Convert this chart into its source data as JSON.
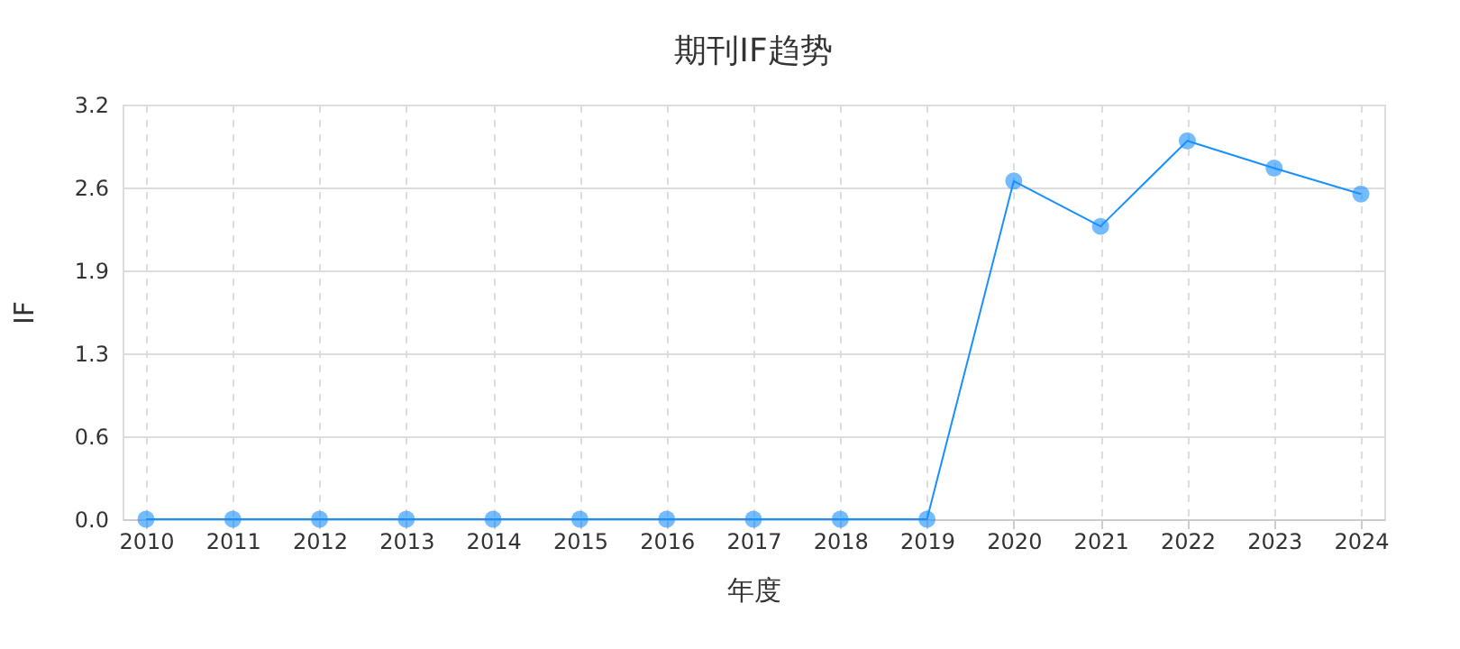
{
  "chart_data": {
    "type": "line",
    "title": "期刊IF趋势",
    "xlabel": "年度",
    "ylabel": "IF",
    "categories": [
      "2010",
      "2011",
      "2012",
      "2013",
      "2014",
      "2015",
      "2016",
      "2017",
      "2018",
      "2019",
      "2020",
      "2021",
      "2022",
      "2023",
      "2024"
    ],
    "series": [
      {
        "color": "#1890ff",
        "values": [
          0,
          0,
          0,
          0,
          0,
          0,
          0,
          0,
          0,
          0,
          2.61,
          2.26,
          2.92,
          2.71,
          2.51
        ]
      }
    ],
    "ylim": [
      0,
      3.2
    ],
    "yticks": [
      {
        "value": 0,
        "label": "0.0"
      },
      {
        "value": 0.64,
        "label": "0.6"
      },
      {
        "value": 1.28,
        "label": "1.3"
      },
      {
        "value": 1.92,
        "label": "1.9"
      },
      {
        "value": 2.56,
        "label": "2.6"
      },
      3.2
    ],
    "grid": true,
    "marker": "circle",
    "line_style": "solid"
  }
}
